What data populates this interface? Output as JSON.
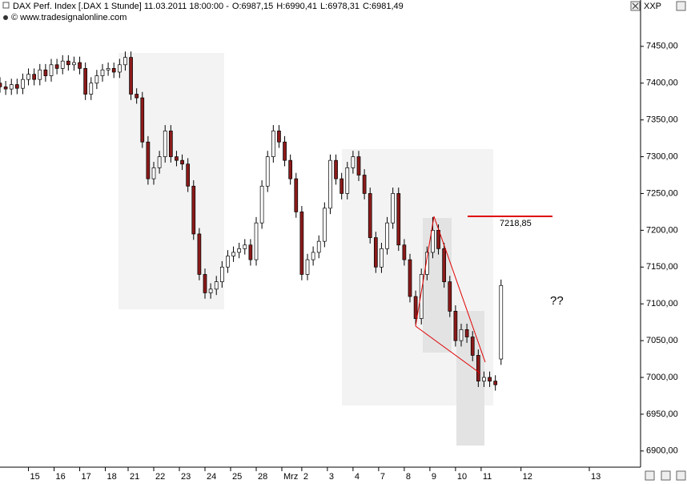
{
  "chart_data": {
    "type": "candlestick",
    "title": "DAX Perf. Index [.DAX  1 Stunde] 11.03.2011 18:00:00 -",
    "header_values": [
      {
        "text": "O:6987,15",
        "color": "#00a000"
      },
      {
        "text": "H:6990,41",
        "color": "#000000"
      },
      {
        "text": "L:6978,31",
        "color": "#000000"
      },
      {
        "text": "C:6981,49",
        "color": "#d00000"
      }
    ],
    "subtitle": "© www.tradesignalonline.com",
    "corner_label": "XXP",
    "up_color": "#ffffff",
    "down_color": "#8b1a1a",
    "xlim": [
      0,
      225
    ],
    "xticks": [
      {
        "value": 10,
        "label": "15"
      },
      {
        "value": 19,
        "label": "16"
      },
      {
        "value": 28,
        "label": "17"
      },
      {
        "value": 37,
        "label": "18"
      },
      {
        "value": 45,
        "label": "21"
      },
      {
        "value": 54,
        "label": "22"
      },
      {
        "value": 63,
        "label": "23"
      },
      {
        "value": 72,
        "label": "24"
      },
      {
        "value": 81,
        "label": "25"
      },
      {
        "value": 90,
        "label": "28"
      },
      {
        "value": 99,
        "label": "Mrz"
      },
      {
        "value": 106,
        "label": "2"
      },
      {
        "value": 115,
        "label": "3"
      },
      {
        "value": 124,
        "label": "4"
      },
      {
        "value": 133,
        "label": "7"
      },
      {
        "value": 142,
        "label": "8"
      },
      {
        "value": 151,
        "label": "9"
      },
      {
        "value": 160,
        "label": "10"
      },
      {
        "value": 169,
        "label": "11"
      },
      {
        "value": 183,
        "label": "12"
      },
      {
        "value": 207,
        "label": "13"
      }
    ],
    "ylim": [
      6878,
      7513
    ],
    "yticks": [
      {
        "value": 6900,
        "label": "6900,00"
      },
      {
        "value": 6950,
        "label": "6950,00"
      },
      {
        "value": 7000,
        "label": "7000,00"
      },
      {
        "value": 7050,
        "label": "7050,00"
      },
      {
        "value": 7100,
        "label": "7100,00"
      },
      {
        "value": 7150,
        "label": "7150,00"
      },
      {
        "value": 7200,
        "label": "7200,00"
      },
      {
        "value": 7250,
        "label": "7250,00"
      },
      {
        "value": 7300,
        "label": "7300,00"
      },
      {
        "value": 7350,
        "label": "7350,00"
      },
      {
        "value": 7400,
        "label": "7400,00"
      },
      {
        "value": 7450,
        "label": "7450,00"
      }
    ],
    "level": {
      "value": 7218.85,
      "label": "7218,85",
      "color": "#e00000"
    },
    "note": {
      "text": "??",
      "color": "#e00000"
    },
    "x": [
      0,
      2,
      4,
      6,
      8,
      10,
      12,
      14,
      16,
      18,
      20,
      22,
      24,
      26,
      28,
      30,
      32,
      34,
      36,
      38,
      40,
      42,
      44,
      46,
      48,
      50,
      52,
      54,
      56,
      58,
      60,
      62,
      64,
      66,
      68,
      70,
      72,
      74,
      76,
      78,
      80,
      82,
      84,
      86,
      88,
      90,
      92,
      94,
      96,
      98,
      100,
      102,
      104,
      106,
      108,
      110,
      112,
      114,
      116,
      118,
      120,
      122,
      124,
      126,
      128,
      130,
      132,
      134,
      136,
      138,
      140,
      142,
      144,
      146,
      148,
      150,
      152,
      154,
      156,
      158,
      160,
      162,
      164,
      166,
      168,
      170,
      172,
      174,
      176
    ],
    "open": [
      7400,
      7395,
      7392,
      7398,
      7393,
      7405,
      7412,
      7405,
      7418,
      7410,
      7425,
      7420,
      7430,
      7425,
      7428,
      7420,
      7385,
      7400,
      7410,
      7418,
      7420,
      7415,
      7425,
      7435,
      7385,
      7380,
      7320,
      7270,
      7285,
      7300,
      7335,
      7300,
      7295,
      7290,
      7260,
      7195,
      7140,
      7115,
      7120,
      7130,
      7150,
      7165,
      7170,
      7175,
      7180,
      7160,
      7210,
      7260,
      7300,
      7335,
      7320,
      7295,
      7270,
      7225,
      7140,
      7160,
      7170,
      7185,
      7230,
      7295,
      7270,
      7250,
      7285,
      7300,
      7275,
      7250,
      7190,
      7150,
      7175,
      7210,
      7250,
      7180,
      7160,
      7110,
      7080,
      7140,
      7170,
      7200,
      7175,
      7130,
      7090,
      7050,
      7065,
      7055,
      7030,
      6995,
      7000,
      6995,
      7025
    ],
    "high": [
      7408,
      7403,
      7406,
      7406,
      7413,
      7420,
      7420,
      7426,
      7426,
      7433,
      7433,
      7438,
      7438,
      7436,
      7436,
      7428,
      7408,
      7418,
      7426,
      7428,
      7428,
      7433,
      7443,
      7443,
      7393,
      7388,
      7328,
      7293,
      7308,
      7343,
      7343,
      7308,
      7303,
      7298,
      7268,
      7203,
      7148,
      7128,
      7138,
      7158,
      7173,
      7178,
      7183,
      7188,
      7188,
      7218,
      7268,
      7308,
      7343,
      7343,
      7328,
      7303,
      7278,
      7233,
      7168,
      7178,
      7193,
      7238,
      7303,
      7303,
      7278,
      7293,
      7308,
      7308,
      7283,
      7258,
      7198,
      7183,
      7218,
      7258,
      7258,
      7188,
      7168,
      7118,
      7148,
      7178,
      7218,
      7208,
      7183,
      7138,
      7098,
      7073,
      7073,
      7063,
      7038,
      7008,
      7008,
      7003,
      7133
    ],
    "low": [
      7387,
      7384,
      7384,
      7385,
      7385,
      7397,
      7397,
      7397,
      7402,
      7402,
      7412,
      7412,
      7417,
      7417,
      7412,
      7377,
      7377,
      7392,
      7402,
      7410,
      7407,
      7407,
      7417,
      7377,
      7372,
      7312,
      7262,
      7262,
      7277,
      7292,
      7292,
      7287,
      7282,
      7252,
      7187,
      7132,
      7107,
      7107,
      7112,
      7122,
      7142,
      7157,
      7162,
      7167,
      7152,
      7152,
      7202,
      7252,
      7292,
      7312,
      7287,
      7262,
      7217,
      7132,
      7132,
      7152,
      7162,
      7177,
      7222,
      7262,
      7242,
      7242,
      7277,
      7267,
      7242,
      7182,
      7142,
      7142,
      7167,
      7202,
      7172,
      7152,
      7102,
      7072,
      7072,
      7132,
      7162,
      7167,
      7122,
      7082,
      7042,
      7042,
      7047,
      7022,
      6987,
      6987,
      6987,
      6982,
      7017
    ],
    "close": [
      7395,
      7392,
      7398,
      7393,
      7405,
      7412,
      7405,
      7418,
      7410,
      7425,
      7420,
      7430,
      7425,
      7428,
      7420,
      7385,
      7400,
      7410,
      7418,
      7420,
      7415,
      7425,
      7435,
      7385,
      7380,
      7320,
      7270,
      7285,
      7300,
      7335,
      7300,
      7295,
      7290,
      7260,
      7195,
      7140,
      7115,
      7120,
      7130,
      7150,
      7165,
      7170,
      7175,
      7180,
      7160,
      7210,
      7260,
      7300,
      7335,
      7320,
      7295,
      7270,
      7225,
      7140,
      7160,
      7170,
      7185,
      7230,
      7295,
      7270,
      7250,
      7285,
      7300,
      7275,
      7250,
      7190,
      7150,
      7175,
      7210,
      7250,
      7180,
      7160,
      7110,
      7080,
      7140,
      7170,
      7200,
      7175,
      7130,
      7090,
      7050,
      7065,
      7055,
      7030,
      6995,
      7000,
      6995,
      6990,
      7125
    ]
  }
}
